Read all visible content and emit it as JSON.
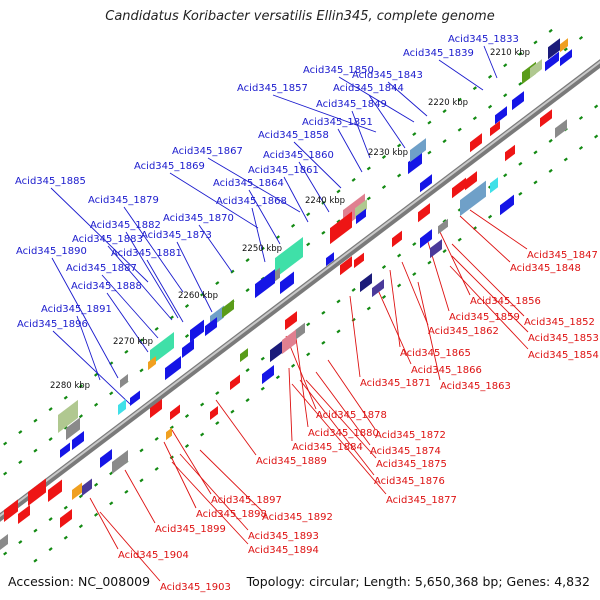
{
  "title": "Candidatus Koribacter versatilis Ellin345, complete genome",
  "footer": {
    "accession": "Accession: NC_008009",
    "summary": "Topology: circular; Length: 5,650,368 bp; Genes: 4,832"
  },
  "colors": {
    "forward_label": "#1a1acd",
    "reverse_label": "#dd1111",
    "backbone": "#8c8c8c",
    "tick": "#138a13"
  },
  "kbp_marks": [
    "2210 kbp",
    "2220 kbp",
    "2230 kbp",
    "2240 kbp",
    "2250 kbp",
    "2260 kbp",
    "2270 kbp",
    "2280 kbp"
  ],
  "gene_labels_top": [
    "Acid345_1833",
    "Acid345_1839",
    "Acid345_1850",
    "Acid345_1843",
    "Acid345_1857",
    "Acid345_1844",
    "Acid345_1849",
    "Acid345_1851",
    "Acid345_1858",
    "Acid345_1867",
    "Acid345_1860",
    "Acid345_1869",
    "Acid345_1861",
    "Acid345_1864",
    "Acid345_1885",
    "Acid345_1879",
    "Acid345_1868",
    "Acid345_1870",
    "Acid345_1882",
    "Acid345_1883",
    "Acid345_1873",
    "Acid345_1890",
    "Acid345_1881",
    "Acid345_1887",
    "Acid345_1888",
    "Acid345_1891",
    "Acid345_1896"
  ],
  "gene_labels_bottom": [
    "Acid345_1847",
    "Acid345_1848",
    "Acid345_1856",
    "Acid345_1859",
    "Acid345_1852",
    "Acid345_1862",
    "Acid345_1853",
    "Acid345_1854",
    "Acid345_1865",
    "Acid345_1866",
    "Acid345_1871",
    "Acid345_1863",
    "Acid345_1878",
    "Acid345_1880",
    "Acid345_1872",
    "Acid345_1884",
    "Acid345_1874",
    "Acid345_1889",
    "Acid345_1875",
    "Acid345_1876",
    "Acid345_1877",
    "Acid345_1897",
    "Acid345_1898",
    "Acid345_1892",
    "Acid345_1899",
    "Acid345_1893",
    "Acid345_1894",
    "Acid345_1904",
    "Acid345_1903"
  ]
}
